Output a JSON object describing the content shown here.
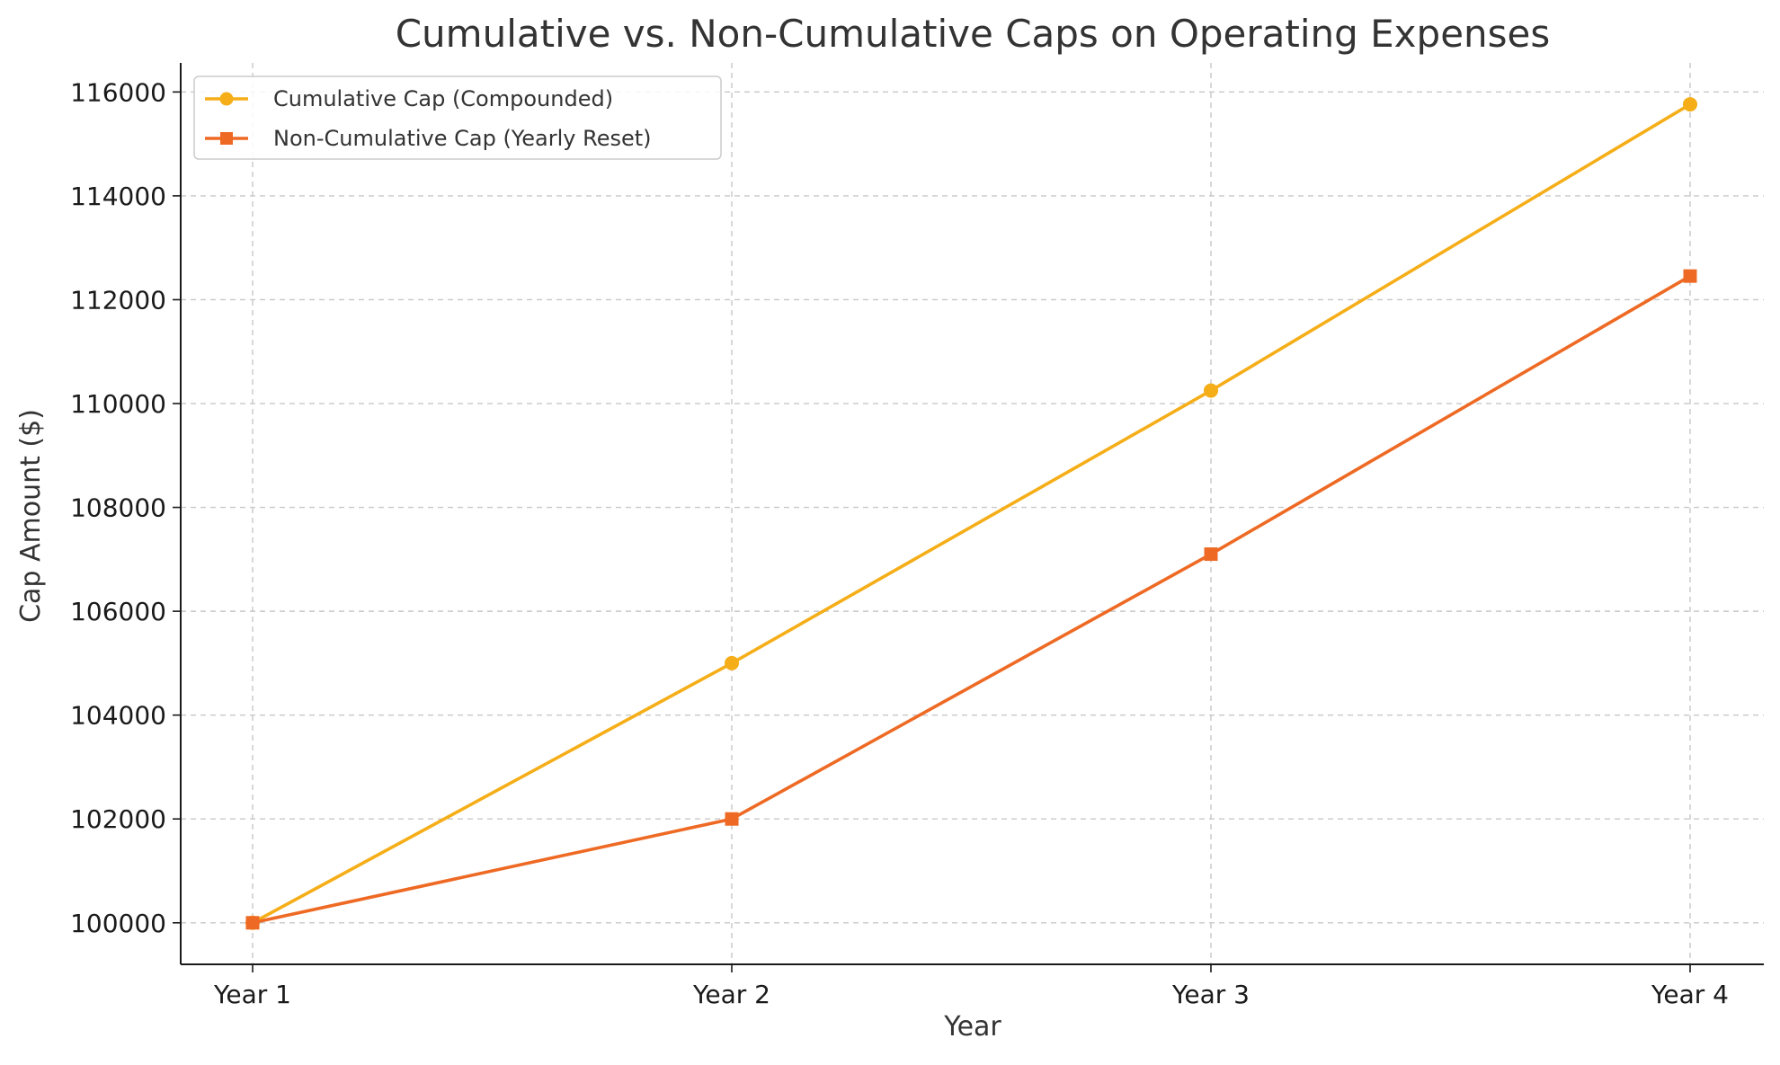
{
  "chart_data": {
    "type": "line",
    "title": "Cumulative vs. Non-Cumulative Caps on Operating Expenses",
    "xlabel": "Year",
    "ylabel": "Cap Amount ($)",
    "categories": [
      "Year 1",
      "Year 2",
      "Year 3",
      "Year 4"
    ],
    "yticks": [
      100000,
      102000,
      104000,
      106000,
      108000,
      110000,
      112000,
      114000,
      116000
    ],
    "ylim": [
      99200,
      116560
    ],
    "grid": true,
    "legend_position": "top-left",
    "series": [
      {
        "name": "Cumulative Cap (Compounded)",
        "values": [
          100000,
          105000,
          110250,
          115762.5
        ],
        "color": "#f5ae18",
        "marker": "circle"
      },
      {
        "name": "Non-Cumulative Cap (Yearly Reset)",
        "values": [
          100000,
          102000,
          107100,
          112455
        ],
        "color": "#ee6a24",
        "marker": "square"
      }
    ]
  }
}
